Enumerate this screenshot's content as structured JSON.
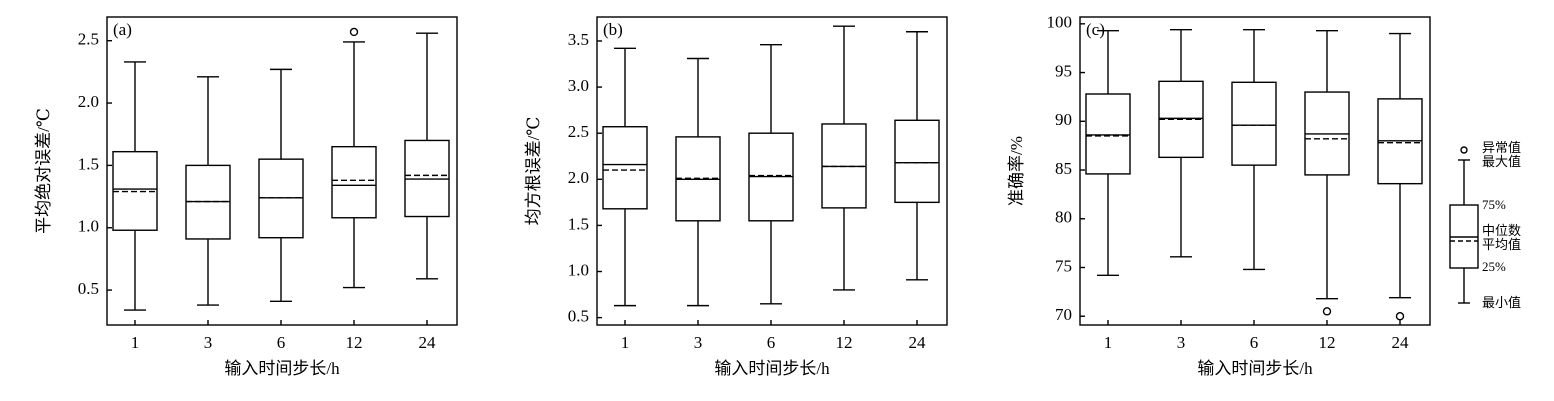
{
  "chart_data": [
    {
      "type": "box",
      "panel_label": "(a)",
      "ylabel": "平均绝对误差/℃",
      "xlabel": "输入时间步长/h",
      "color": "#000000",
      "categories": [
        "1",
        "3",
        "6",
        "12",
        "24"
      ],
      "boxes": [
        {
          "min": 0.34,
          "q1": 0.98,
          "median": 1.31,
          "mean": 1.29,
          "q3": 1.61,
          "max": 2.33
        },
        {
          "min": 0.38,
          "q1": 0.91,
          "median": 1.21,
          "mean": 1.21,
          "q3": 1.5,
          "max": 2.21
        },
        {
          "min": 0.41,
          "q1": 0.92,
          "median": 1.24,
          "mean": 1.24,
          "q3": 1.55,
          "max": 2.27
        },
        {
          "min": 0.52,
          "q1": 1.08,
          "median": 1.34,
          "mean": 1.38,
          "q3": 1.65,
          "max": 2.49,
          "outliers": [
            2.57
          ]
        },
        {
          "min": 0.59,
          "q1": 1.09,
          "median": 1.39,
          "mean": 1.42,
          "q3": 1.7,
          "max": 2.56
        }
      ],
      "ylim": [
        0.22,
        2.69
      ],
      "yticks": [
        0.5,
        {
          "value": 1,
          "label": "1.0"
        },
        1.5,
        {
          "value": 2,
          "label": "2.0"
        },
        2.5
      ]
    },
    {
      "type": "box",
      "panel_label": "(b)",
      "ylabel": "均方根误差/℃",
      "xlabel": "输入时间步长/h",
      "color": "#000000",
      "categories": [
        "1",
        "3",
        "6",
        "12",
        "24"
      ],
      "boxes": [
        {
          "min": 0.63,
          "q1": 1.68,
          "median": 2.16,
          "mean": 2.1,
          "q3": 2.57,
          "max": 3.42
        },
        {
          "min": 0.63,
          "q1": 1.55,
          "median": 2.0,
          "mean": 2.01,
          "q3": 2.46,
          "max": 3.31
        },
        {
          "min": 0.65,
          "q1": 1.55,
          "median": 2.03,
          "mean": 2.04,
          "q3": 2.5,
          "max": 3.46
        },
        {
          "min": 0.8,
          "q1": 1.69,
          "median": 2.14,
          "mean": 2.14,
          "q3": 2.6,
          "max": 3.66
        },
        {
          "min": 0.91,
          "q1": 1.75,
          "median": 2.18,
          "mean": 2.18,
          "q3": 2.64,
          "max": 3.6
        }
      ],
      "ylim": [
        0.42,
        3.76
      ],
      "yticks": [
        0.5,
        {
          "value": 1,
          "label": "1.0"
        },
        1.5,
        {
          "value": 2,
          "label": "2.0"
        },
        2.5,
        {
          "value": 3,
          "label": "3.0"
        },
        3.5
      ]
    },
    {
      "type": "box",
      "panel_label": "(c)",
      "ylabel": "准确率/%",
      "xlabel": "输入时间步长/h",
      "color": "#000000",
      "categories": [
        "1",
        "3",
        "6",
        "12",
        "24"
      ],
      "boxes": [
        {
          "min": 74.2,
          "q1": 84.6,
          "median": 88.6,
          "mean": 88.5,
          "q3": 92.8,
          "max": 99.3
        },
        {
          "min": 76.1,
          "q1": 86.3,
          "median": 90.3,
          "mean": 90.2,
          "q3": 94.1,
          "max": 99.4
        },
        {
          "min": 74.8,
          "q1": 85.5,
          "median": 89.6,
          "mean": 89.6,
          "q3": 94.0,
          "max": 99.4
        },
        {
          "min": 71.8,
          "q1": 84.5,
          "median": 88.7,
          "mean": 88.2,
          "q3": 93.0,
          "max": 99.3,
          "outliers": [
            70.5
          ]
        },
        {
          "min": 71.9,
          "q1": 83.6,
          "median": 88.0,
          "mean": 87.8,
          "q3": 92.3,
          "max": 99.0,
          "outliers": [
            70.0
          ]
        }
      ],
      "ylim": [
        69.1,
        100.7
      ],
      "yticks": [
        70,
        75,
        80,
        85,
        90,
        95,
        100
      ]
    }
  ],
  "legend": {
    "labels": [
      "异常值",
      "最大值",
      "75%",
      "中位数",
      "平均值",
      "25%",
      "最小值"
    ]
  }
}
